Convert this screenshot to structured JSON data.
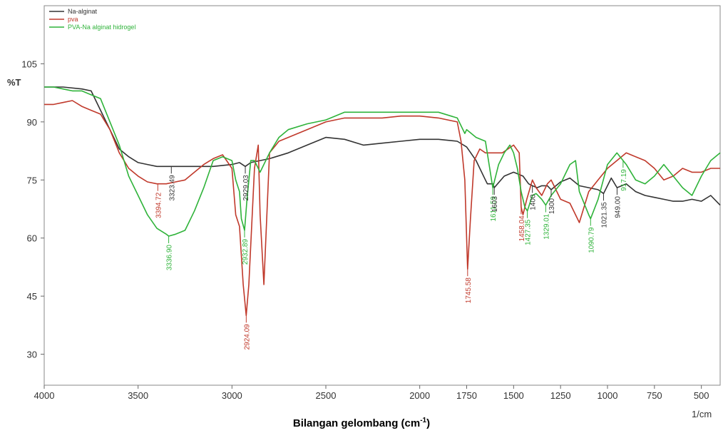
{
  "chart_data": {
    "type": "line",
    "y_axis_label": "%T",
    "x_axis_unit": "1/cm",
    "x_title_prefix": "Bilangan gelombang (cm",
    "x_title_sup": "-1",
    "x_title_suffix": ")",
    "xlim": [
      4000,
      400
    ],
    "ylim": [
      22,
      120
    ],
    "x_ticks": [
      4000,
      3500,
      3000,
      2500,
      2000,
      1750,
      1500,
      1250,
      1000,
      750,
      500
    ],
    "y_ticks": [
      105,
      90,
      75,
      60,
      45,
      30
    ],
    "grid": false,
    "legend_position": "top-left",
    "series": [
      {
        "name": "Na-alginat",
        "color": "#333333",
        "x": [
          4000,
          3900,
          3800,
          3750,
          3700,
          3650,
          3600,
          3550,
          3500,
          3450,
          3400,
          3350,
          3300,
          3200,
          3100,
          3000,
          2960,
          2929,
          2900,
          2800,
          2700,
          2600,
          2500,
          2400,
          2300,
          2200,
          2100,
          2000,
          1900,
          1800,
          1750,
          1700,
          1650,
          1640,
          1610,
          1603,
          1550,
          1500,
          1450,
          1420,
          1400,
          1375,
          1350,
          1320,
          1300,
          1250,
          1200,
          1150,
          1100,
          1050,
          1021,
          980,
          949,
          900,
          850,
          800,
          750,
          700,
          650,
          600,
          550,
          500,
          450,
          400
        ],
        "y": [
          99,
          99,
          98.5,
          98,
          93,
          88,
          83,
          81,
          79.5,
          79,
          78.5,
          78.5,
          78.5,
          78.5,
          78.5,
          79,
          79.5,
          78.5,
          79.5,
          80.5,
          82,
          84,
          86,
          85.5,
          84,
          84.5,
          85,
          85.5,
          85.5,
          85,
          83.5,
          80,
          75,
          74,
          74,
          73,
          76,
          77,
          76,
          74,
          73.5,
          73,
          73.5,
          73.5,
          72.5,
          74.5,
          75.5,
          73.5,
          73,
          72.5,
          71.5,
          75.5,
          73,
          74,
          72,
          71,
          70.5,
          70,
          69.5,
          69.5,
          70,
          69.5,
          71,
          68.5
        ]
      },
      {
        "name": "pva",
        "color": "#c0392b",
        "x": [
          4000,
          3950,
          3900,
          3850,
          3800,
          3750,
          3700,
          3650,
          3600,
          3550,
          3500,
          3450,
          3400,
          3350,
          3300,
          3250,
          3200,
          3150,
          3100,
          3050,
          3000,
          2980,
          2960,
          2940,
          2924,
          2910,
          2880,
          2860,
          2850,
          2830,
          2800,
          2750,
          2700,
          2600,
          2500,
          2400,
          2300,
          2200,
          2100,
          2000,
          1900,
          1800,
          1780,
          1760,
          1745,
          1730,
          1710,
          1680,
          1650,
          1600,
          1560,
          1500,
          1470,
          1460,
          1450,
          1430,
          1400,
          1380,
          1350,
          1320,
          1300,
          1280,
          1250,
          1200,
          1150,
          1100,
          1050,
          1000,
          950,
          900,
          850,
          800,
          750,
          700,
          650,
          600,
          550,
          500,
          450,
          400
        ],
        "y": [
          94.5,
          94.5,
          95,
          95.5,
          94,
          93,
          92,
          88,
          82,
          78,
          76,
          74.5,
          74,
          74,
          74.5,
          75,
          77,
          79,
          80.5,
          81.5,
          78,
          66,
          63,
          48,
          40,
          48,
          78,
          84,
          66,
          48,
          82,
          85,
          86,
          88,
          90,
          91,
          91,
          91,
          91.5,
          91.5,
          91,
          90,
          85,
          75,
          52,
          65,
          80,
          83,
          82,
          82,
          82,
          84,
          82,
          68,
          66,
          70,
          75,
          73,
          71,
          74,
          75,
          73,
          70,
          69,
          64,
          72,
          75,
          78,
          80,
          82,
          81,
          80,
          78,
          75,
          76,
          78,
          77,
          77,
          78,
          78
        ]
      },
      {
        "name": "PVA-Na alginat hidrogel",
        "color": "#2fb33a",
        "x": [
          4000,
          3950,
          3900,
          3850,
          3800,
          3750,
          3700,
          3650,
          3600,
          3550,
          3500,
          3450,
          3400,
          3350,
          3337,
          3300,
          3250,
          3200,
          3150,
          3100,
          3050,
          3000,
          2980,
          2960,
          2950,
          2933,
          2920,
          2900,
          2880,
          2850,
          2800,
          2750,
          2700,
          2600,
          2500,
          2400,
          2300,
          2200,
          2100,
          2000,
          1900,
          1800,
          1760,
          1750,
          1700,
          1650,
          1611,
          1580,
          1550,
          1520,
          1500,
          1480,
          1460,
          1440,
          1427,
          1400,
          1380,
          1350,
          1329,
          1300,
          1250,
          1200,
          1170,
          1150,
          1100,
          1090,
          1050,
          1000,
          950,
          917,
          900,
          850,
          800,
          750,
          700,
          650,
          600,
          550,
          500,
          450,
          400
        ],
        "y": [
          99,
          99,
          98.5,
          98,
          98,
          97,
          96,
          90,
          84,
          76,
          71,
          66,
          62.5,
          61,
          60.5,
          61,
          62,
          67,
          73,
          80,
          81,
          80,
          75,
          72,
          65,
          62,
          70,
          80,
          80,
          77,
          82,
          86,
          88,
          89.5,
          90.5,
          92.5,
          92.5,
          92.5,
          92.5,
          92.5,
          92.5,
          91,
          87,
          88,
          86,
          85,
          73,
          79,
          82,
          84,
          82,
          78,
          72,
          68,
          67,
          71,
          71.5,
          70,
          68.5,
          71,
          74,
          79,
          80,
          72,
          66,
          65,
          70,
          79,
          82,
          80,
          79,
          75,
          74,
          76,
          79,
          76,
          73,
          71,
          76,
          80,
          82
        ]
      }
    ],
    "annotations": [
      {
        "label": "3394.72",
        "x": 3395,
        "y": 74,
        "color": "#c0392b"
      },
      {
        "label": "3323.49",
        "x": 3323,
        "y": 78.5,
        "color": "#333333"
      },
      {
        "label": "3336.90",
        "x": 3337,
        "y": 60.5,
        "color": "#2fb33a"
      },
      {
        "label": "2929.03",
        "x": 2929,
        "y": 78.5,
        "color": "#333333"
      },
      {
        "label": "2932.89",
        "x": 2933,
        "y": 62,
        "color": "#2fb33a"
      },
      {
        "label": "2924.09",
        "x": 2924,
        "y": 40,
        "color": "#c0392b"
      },
      {
        "label": "1745.58",
        "x": 1745,
        "y": 52,
        "color": "#c0392b"
      },
      {
        "label": "1611.59",
        "x": 1611,
        "y": 73,
        "color": "#2fb33a"
      },
      {
        "label": "1603",
        "x": 1603,
        "y": 73,
        "color": "#333333"
      },
      {
        "label": "1458.04",
        "x": 1460,
        "y": 68,
        "color": "#c0392b"
      },
      {
        "label": "1427.35",
        "x": 1427,
        "y": 67,
        "color": "#2fb33a"
      },
      {
        "label": "1400",
        "x": 1400,
        "y": 73.5,
        "color": "#333333"
      },
      {
        "label": "1329.01",
        "x": 1329,
        "y": 68.5,
        "color": "#2fb33a"
      },
      {
        "label": "1300",
        "x": 1300,
        "y": 72.5,
        "color": "#333333"
      },
      {
        "label": "1090.79",
        "x": 1090,
        "y": 65,
        "color": "#2fb33a"
      },
      {
        "label": "1021.35",
        "x": 1021,
        "y": 71.5,
        "color": "#333333"
      },
      {
        "label": "949.00",
        "x": 949,
        "y": 73,
        "color": "#333333"
      },
      {
        "label": "917.19",
        "x": 917,
        "y": 80,
        "color": "#2fb33a"
      }
    ]
  }
}
